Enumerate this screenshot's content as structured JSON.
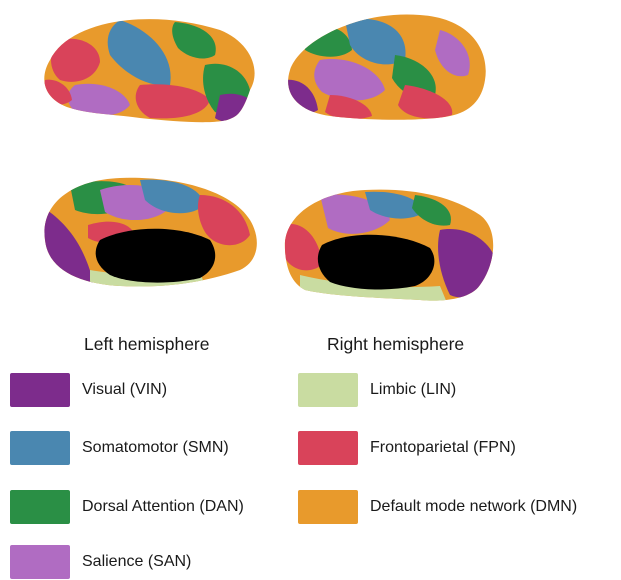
{
  "hemispheres": {
    "left_label": "Left hemisphere",
    "right_label": "Right hemisphere"
  },
  "legend": [
    {
      "label": "Visual (VIN)",
      "color": "#7d2c8c"
    },
    {
      "label": "Limbic (LIN)",
      "color": "#c9dca1"
    },
    {
      "label": "Somatomotor (SMN)",
      "color": "#4a87b0"
    },
    {
      "label": "Frontoparietal (FPN)",
      "color": "#d9435a"
    },
    {
      "label": "Dorsal Attention (DAN)",
      "color": "#2a8f45"
    },
    {
      "label": "Default mode network (DMN)",
      "color": "#e89a2c"
    },
    {
      "label": "Salience (SAN)",
      "color": "#b06cc2"
    }
  ]
}
